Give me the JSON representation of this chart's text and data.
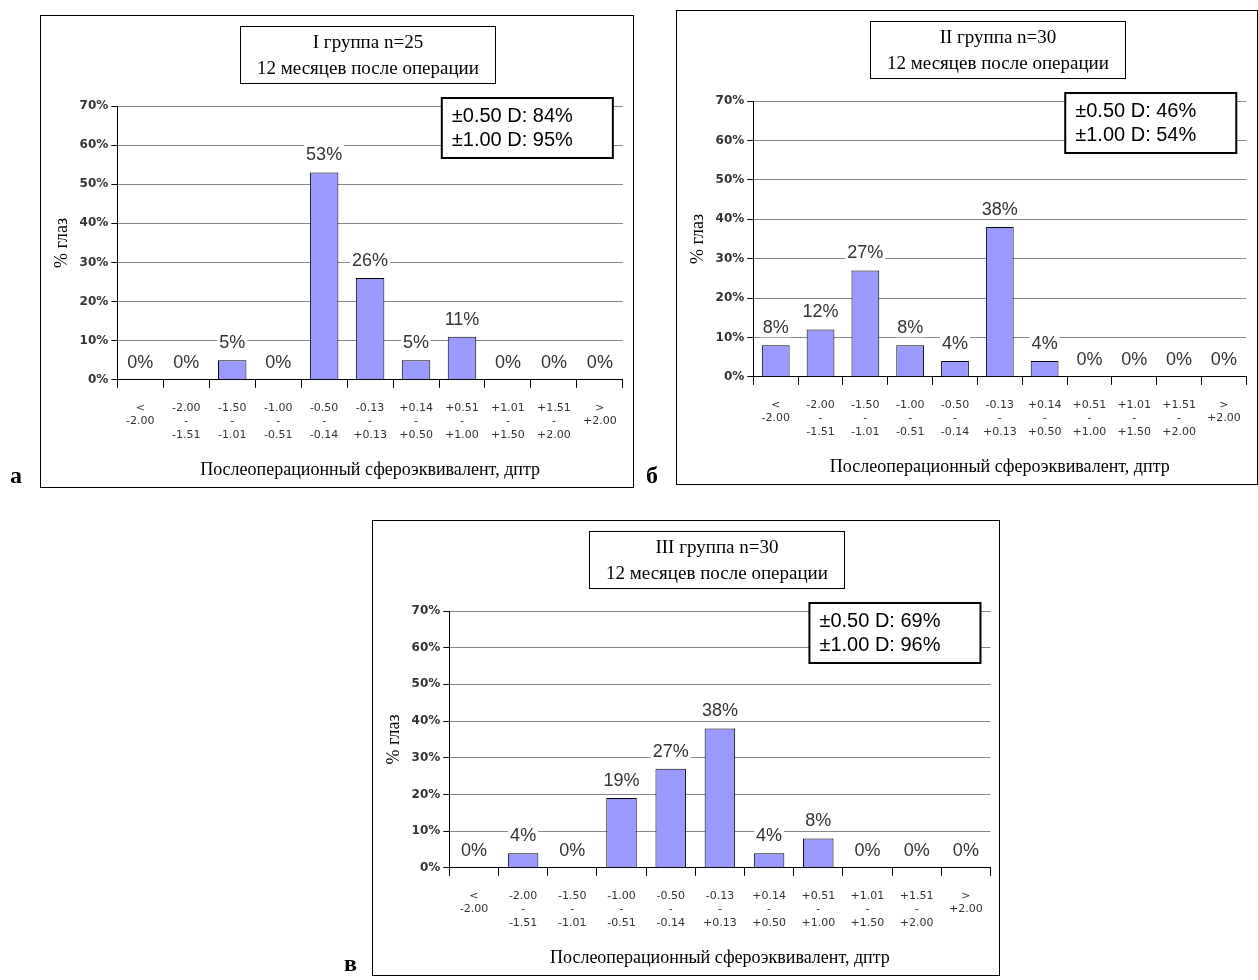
{
  "chart_data": [
    {
      "type": "bar",
      "title": "I группа n=25",
      "subtitle": "12 месяцев после операции",
      "xlabel": "Послеоперационный сфероэквивалент, дптр",
      "ylabel": "% глаз",
      "categories": [
        "< -2.00",
        "-2.00 - -1.51",
        "-1.50 - -1.01",
        "-1.00 - -0.51",
        "-0.50 - -0.14",
        "-0.13 - +0.13",
        "+0.14 - +0.50",
        "+0.51 - +1.00",
        "+1.01 - +1.50",
        "+1.51 - +2.00",
        "> +2.00"
      ],
      "values": [
        0,
        0,
        5,
        0,
        53,
        26,
        5,
        11,
        0,
        0,
        0
      ],
      "value_labels": [
        "0%",
        "0%",
        "5%",
        "0%",
        "53%",
        "26%",
        "5%",
        "11%",
        "0%",
        "0%",
        "0%"
      ],
      "color": "#9999ff",
      "ylim": [
        0,
        70
      ],
      "yticks": [
        {
          "value": 0,
          "label": "0%"
        },
        {
          "value": 10,
          "label": "10%"
        },
        {
          "value": 20,
          "label": "20%"
        },
        {
          "value": 30,
          "label": "30%"
        },
        {
          "value": 40,
          "label": "40%"
        },
        {
          "value": 50,
          "label": "50%"
        },
        {
          "value": 60,
          "label": "60%"
        },
        {
          "value": 70,
          "label": "70%"
        }
      ],
      "grid": "y",
      "annotations": [
        "а",
        "±0.50 D: 84%",
        "±1.00 D: 95%"
      ]
    },
    {
      "type": "bar",
      "title": "II группа n=30",
      "subtitle": "12 месяцев после операции",
      "xlabel": "Послеоперационный сфероэквивалент, дптр",
      "ylabel": "% глаз",
      "categories": [
        "< -2.00",
        "-2.00 - -1.51",
        "-1.50 - -1.01",
        "-1.00 - -0.51",
        "-0.50 - -0.14",
        "-0.13 - +0.13",
        "+0.14 - +0.50",
        "+0.51 - +1.00",
        "+1.01 - +1.50",
        "+1.51 - +2.00",
        "> +2.00"
      ],
      "values": [
        8,
        12,
        27,
        8,
        4,
        38,
        4,
        0,
        0,
        0,
        0
      ],
      "value_labels": [
        "8%",
        "12%",
        "27%",
        "8%",
        "4%",
        "38%",
        "4%",
        "0%",
        "0%",
        "0%",
        "0%"
      ],
      "color": "#9999ff",
      "ylim": [
        0,
        70
      ],
      "yticks": [
        {
          "value": 0,
          "label": "0%"
        },
        {
          "value": 10,
          "label": "10%"
        },
        {
          "value": 20,
          "label": "20%"
        },
        {
          "value": 30,
          "label": "30%"
        },
        {
          "value": 40,
          "label": "40%"
        },
        {
          "value": 50,
          "label": "50%"
        },
        {
          "value": 60,
          "label": "60%"
        },
        {
          "value": 70,
          "label": "70%"
        }
      ],
      "grid": "y",
      "annotations": [
        "б",
        "±0.50 D: 46%",
        "±1.00 D: 54%"
      ]
    },
    {
      "type": "bar",
      "title": "III группа n=30",
      "subtitle": "12 месяцев после операции",
      "xlabel": "Послеоперационный сфероэквивалент, дптр",
      "ylabel": "% глаз",
      "categories": [
        "< -2.00",
        "-2.00 - -1.51",
        "-1.50 - -1.01",
        "-1.00 - -0.51",
        "-0.50 - -0.14",
        "-0.13 - +0.13",
        "+0.14 - +0.50",
        "+0.51 - +1.00",
        "+1.01 - +1.50",
        "+1.51 - +2.00",
        "> +2.00"
      ],
      "values": [
        0,
        4,
        0,
        19,
        27,
        38,
        4,
        8,
        0,
        0,
        0
      ],
      "value_labels": [
        "0%",
        "4%",
        "0%",
        "19%",
        "27%",
        "38%",
        "4%",
        "8%",
        "0%",
        "0%",
        "0%"
      ],
      "color": "#9999ff",
      "ylim": [
        0,
        70
      ],
      "yticks": [
        {
          "value": 0,
          "label": "0%"
        },
        {
          "value": 10,
          "label": "10%"
        },
        {
          "value": 20,
          "label": "20%"
        },
        {
          "value": 30,
          "label": "30%"
        },
        {
          "value": 40,
          "label": "40%"
        },
        {
          "value": 50,
          "label": "50%"
        },
        {
          "value": 60,
          "label": "60%"
        },
        {
          "value": 70,
          "label": "70%"
        }
      ],
      "grid": "y",
      "annotations": [
        "в",
        "±0.50 D: 69%",
        "±1.00 D: 96%"
      ]
    }
  ]
}
